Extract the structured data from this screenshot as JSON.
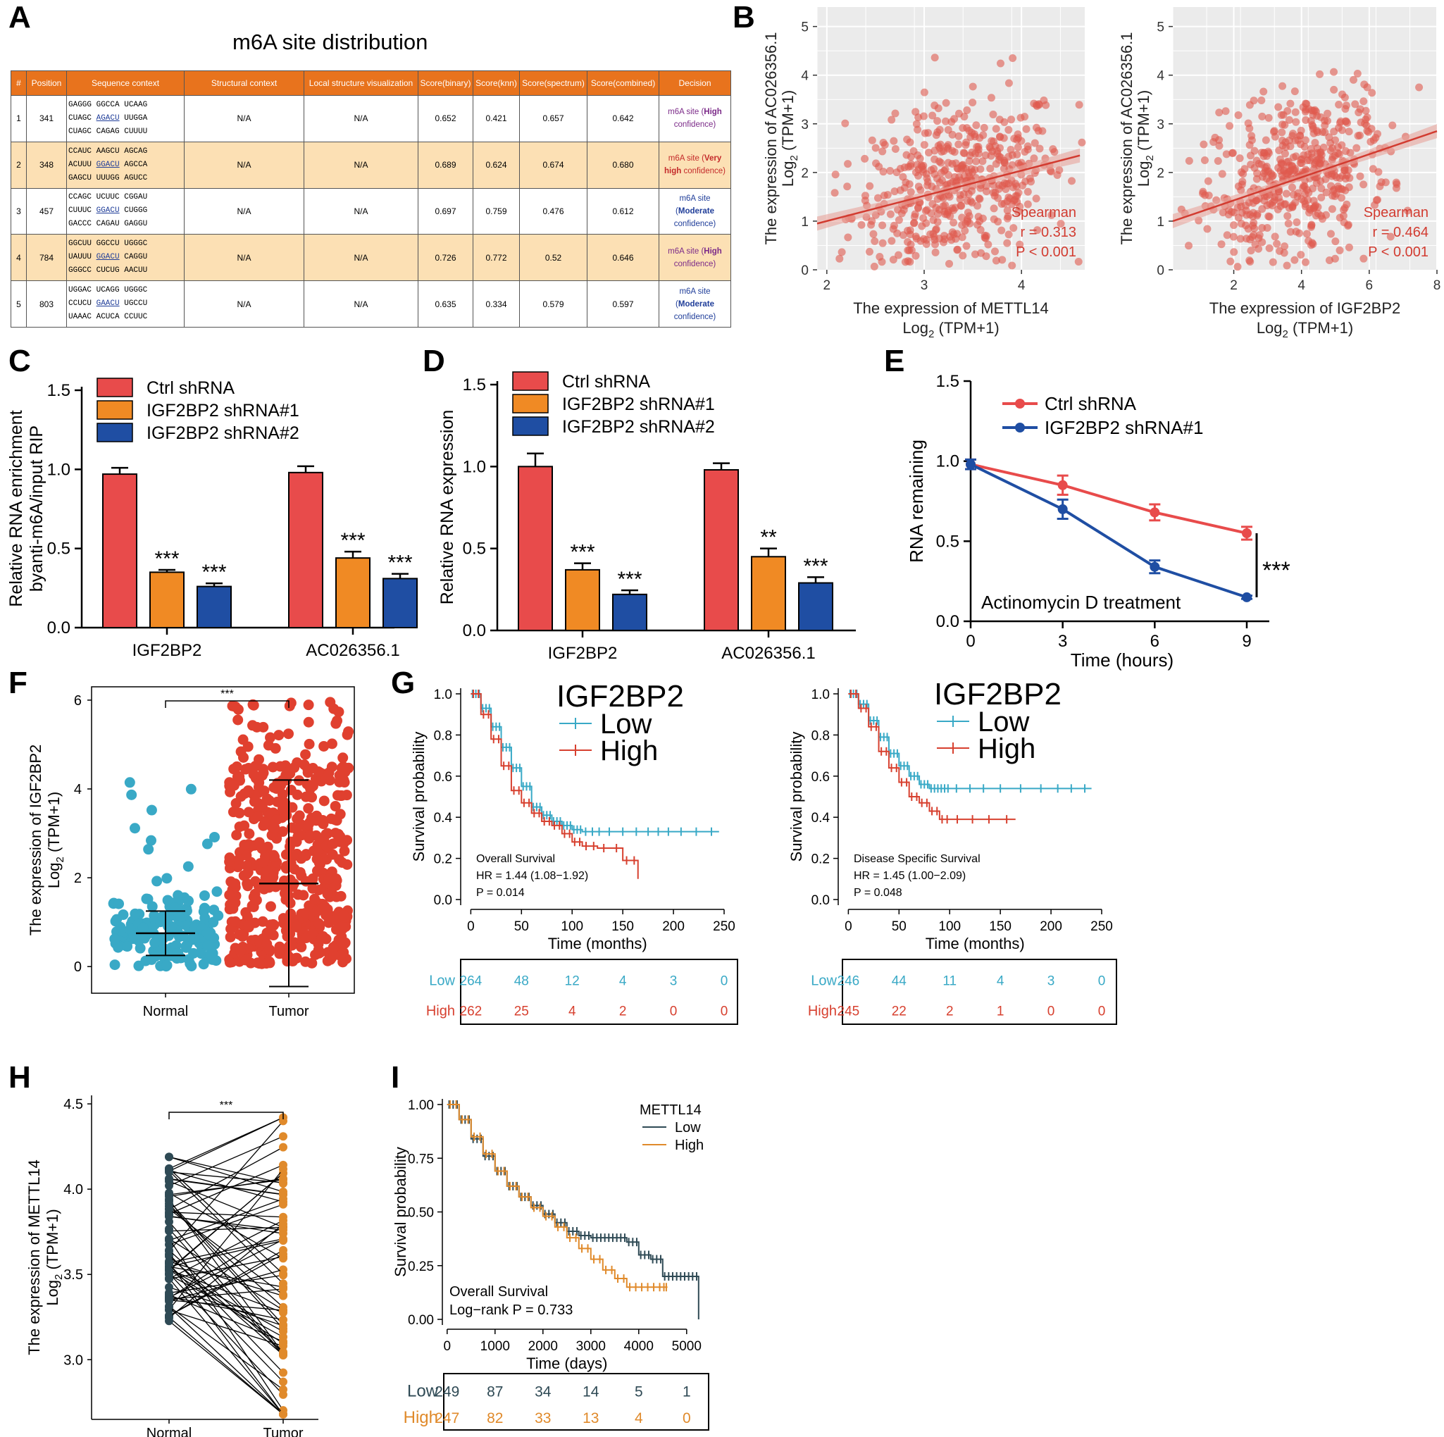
{
  "panels": {
    "A": "A",
    "B": "B",
    "C": "C",
    "D": "D",
    "E": "E",
    "F": "F",
    "G": "G",
    "H": "H",
    "I": "I"
  },
  "panelA": {
    "title": "m6A site distribution",
    "headers": [
      "#",
      "Position",
      "Sequence context",
      "Structural context",
      "Local structure visualization",
      "Score(binary)",
      "Score(knn)",
      "Score(spectrum)",
      "Score(combined)",
      "Decision"
    ],
    "rows": [
      {
        "n": "1",
        "pos": "341",
        "seq": [
          "GAGGG GGCCA UCAAG",
          "CUAGC AGACU UUGGA",
          "CUAGC CAGAG CUUUU"
        ],
        "sc": "N/A",
        "lsv": "N/A",
        "binary": "0.652",
        "knn": "0.421",
        "spectrum": "0.657",
        "combined": "0.642",
        "decision_a": "m6A site (",
        "decision_b": "High",
        "decision_c": " confidence)",
        "dclass": "dec-high"
      },
      {
        "n": "2",
        "pos": "348",
        "seq": [
          "CCAUC AAGCU AGCAG",
          "ACUUU GGACU AGCCA",
          "GAGCU UUUGG AGUCC"
        ],
        "sc": "N/A",
        "lsv": "N/A",
        "binary": "0.689",
        "knn": "0.624",
        "spectrum": "0.674",
        "combined": "0.680",
        "decision_a": "m6A site (",
        "decision_b": "Very high",
        "decision_c": " confidence)",
        "dclass": "dec-very"
      },
      {
        "n": "3",
        "pos": "457",
        "seq": [
          "CCAGC UCUUC CGGAU",
          "CUUUC GGACU CUGGG",
          "GACCC CAGAU GAGGU"
        ],
        "sc": "N/A",
        "lsv": "N/A",
        "binary": "0.697",
        "knn": "0.759",
        "spectrum": "0.476",
        "combined": "0.612",
        "decision_a": "m6A site (",
        "decision_b": "Moderate",
        "decision_c": " confidence)",
        "dclass": "dec-mod"
      },
      {
        "n": "4",
        "pos": "784",
        "seq": [
          "GGCUU GGCCU UGGGC",
          "UAUUU GGACU CAGGU",
          "GGGCC CUCUG AACUU"
        ],
        "sc": "N/A",
        "lsv": "N/A",
        "binary": "0.726",
        "knn": "0.772",
        "spectrum": "0.52",
        "combined": "0.646",
        "decision_a": "m6A site (",
        "decision_b": "High",
        "decision_c": " confidence)",
        "dclass": "dec-high"
      },
      {
        "n": "5",
        "pos": "803",
        "seq": [
          "UGGAC UCAGG UGGGC",
          "CCUCU GAACU UGCCU",
          "UAAAC ACUCA CCUUC"
        ],
        "sc": "N/A",
        "lsv": "N/A",
        "binary": "0.635",
        "knn": "0.334",
        "spectrum": "0.579",
        "combined": "0.597",
        "decision_a": "m6A site (",
        "decision_b": "Moderate",
        "decision_c": " confidence)",
        "dclass": "dec-mod"
      }
    ]
  },
  "colors": {
    "red": "#e84b4b",
    "orange": "#f08a24",
    "blue": "#1f4ea3",
    "scatter": "#e05a4f",
    "teal": "#39a9c6",
    "tumor_red": "#e0402f",
    "km_red": "#d7402f",
    "dark_slate": "#2f4a55",
    "gold": "#e08a2b"
  },
  "chart_data": [
    {
      "id": "B1",
      "type": "scatter",
      "xlabel": "The expression of METTL14",
      "xlabel2": "Log2 (TPM+1)",
      "ylabel": "The expression of AC026356.1",
      "ylabel2": "Log2 (TPM+1)",
      "xlim": [
        1.9,
        4.65
      ],
      "ylim": [
        0,
        5.4
      ],
      "xticks": [
        2,
        3,
        4
      ],
      "yticks": [
        0,
        1,
        2,
        3,
        4,
        5
      ],
      "fit": {
        "x": [
          1.9,
          4.6
        ],
        "y": [
          0.95,
          2.35
        ]
      },
      "annotation": [
        "Spearman",
        "r = 0.313",
        "P < 0.001"
      ]
    },
    {
      "id": "B2",
      "type": "scatter",
      "xlabel": "The expression of IGF2BP2",
      "xlabel2": "Log2 (TPM+1)",
      "ylabel": "The expression of AC026356.1",
      "ylabel2": "Log2 (TPM+1)",
      "xlim": [
        0.2,
        8.0
      ],
      "ylim": [
        0,
        5.4
      ],
      "xticks": [
        2,
        4,
        6,
        8
      ],
      "yticks": [
        0,
        1,
        2,
        3,
        4,
        5
      ],
      "fit": {
        "x": [
          0.2,
          8.0
        ],
        "y": [
          1.0,
          2.85
        ]
      },
      "annotation": [
        "Spearman",
        "r = 0.464",
        "P < 0.001"
      ]
    },
    {
      "id": "C",
      "type": "bar",
      "ylabel": "Relative RNA enrichment",
      "ylabel2": "byanti-m6A/input RIP",
      "categories": [
        "IGF2BP2",
        "AC026356.1"
      ],
      "ylim": [
        0,
        1.5
      ],
      "yticks": [
        "0.0",
        "0.5",
        "1.0",
        "1.5"
      ],
      "series": [
        {
          "name": "Ctrl shRNA",
          "values": [
            0.97,
            0.98
          ],
          "err": [
            0.04,
            0.04
          ],
          "sig": [
            "",
            ""
          ]
        },
        {
          "name": "IGF2BP2 shRNA#1",
          "values": [
            0.35,
            0.44
          ],
          "err": [
            0.015,
            0.04
          ],
          "sig": [
            "***",
            "***"
          ]
        },
        {
          "name": "IGF2BP2 shRNA#2",
          "values": [
            0.26,
            0.31
          ],
          "err": [
            0.02,
            0.03
          ],
          "sig": [
            "***",
            "***"
          ]
        }
      ]
    },
    {
      "id": "D",
      "type": "bar",
      "ylabel": "Relative RNA expression",
      "categories": [
        "IGF2BP2",
        "AC026356.1"
      ],
      "ylim": [
        0,
        1.5
      ],
      "yticks": [
        "0.0",
        "0.5",
        "1.0",
        "1.5"
      ],
      "series": [
        {
          "name": "Ctrl shRNA",
          "values": [
            1.0,
            0.98
          ],
          "err": [
            0.08,
            0.04
          ],
          "sig": [
            "",
            ""
          ]
        },
        {
          "name": "IGF2BP2 shRNA#1",
          "values": [
            0.37,
            0.45
          ],
          "err": [
            0.04,
            0.05
          ],
          "sig": [
            "***",
            "**"
          ]
        },
        {
          "name": "IGF2BP2 shRNA#2",
          "values": [
            0.22,
            0.29
          ],
          "err": [
            0.025,
            0.035
          ],
          "sig": [
            "***",
            "***"
          ]
        }
      ]
    },
    {
      "id": "E",
      "type": "line",
      "xlabel": "Time (hours)",
      "ylabel": "RNA remaining",
      "x": [
        0,
        3,
        6,
        9
      ],
      "xlim": [
        0,
        9.5
      ],
      "ylim": [
        0,
        1.5
      ],
      "xticks": [
        "0",
        "3",
        "6",
        "9"
      ],
      "yticks": [
        "0.0",
        "0.5",
        "1.0",
        "1.5"
      ],
      "series": [
        {
          "name": "Ctrl shRNA",
          "values": [
            0.98,
            0.85,
            0.68,
            0.55
          ],
          "err": [
            0.03,
            0.06,
            0.05,
            0.04
          ]
        },
        {
          "name": "IGF2BP2 shRNA#1",
          "values": [
            0.98,
            0.7,
            0.34,
            0.15
          ],
          "err": [
            0.03,
            0.06,
            0.04,
            0.01
          ]
        }
      ],
      "annotation": "Actinomycin D treatment",
      "sig": "***"
    },
    {
      "id": "F",
      "type": "scatter",
      "ylabel": "The expression of IGF2BP2",
      "ylabel2": "Log2 (TPM+1)",
      "categories": [
        "Normal",
        "Tumor"
      ],
      "ylim": [
        -0.6,
        6.3
      ],
      "yticks": [
        0,
        2,
        4,
        6
      ],
      "summary": [
        {
          "mean": 0.75,
          "sd_low": 0.25,
          "sd_high": 1.25
        },
        {
          "mean": 1.87,
          "sd_low": -0.45,
          "sd_high": 4.2
        }
      ],
      "sig": "***"
    },
    {
      "id": "G1",
      "type": "line",
      "legend_title": "IGF2BP2",
      "xlabel": "Time (months)",
      "ylabel": "Survival probability",
      "xlim": [
        -10,
        250
      ],
      "ylim": [
        0,
        1.0
      ],
      "xticks": [
        0,
        50,
        100,
        150,
        200,
        250
      ],
      "yticks": [
        "0.0",
        "0.2",
        "0.4",
        "0.6",
        "0.8",
        "1.0"
      ],
      "series": [
        {
          "name": "Low",
          "x": [
            0,
            10,
            20,
            30,
            40,
            50,
            60,
            70,
            80,
            90,
            100,
            110,
            130,
            170,
            200,
            245
          ],
          "y": [
            1.0,
            0.93,
            0.84,
            0.74,
            0.64,
            0.55,
            0.45,
            0.41,
            0.38,
            0.36,
            0.34,
            0.33,
            0.33,
            0.33,
            0.33,
            0.33
          ]
        },
        {
          "name": "High",
          "x": [
            0,
            10,
            20,
            30,
            40,
            50,
            60,
            70,
            80,
            90,
            100,
            110,
            125,
            150,
            165
          ],
          "y": [
            1.0,
            0.9,
            0.78,
            0.65,
            0.53,
            0.47,
            0.42,
            0.38,
            0.36,
            0.32,
            0.28,
            0.26,
            0.25,
            0.19,
            0.1
          ]
        }
      ],
      "annotation": [
        "Overall Survival",
        "HR = 1.44 (1.08−1.92)",
        "P = 0.014"
      ],
      "risk_table": {
        "Low": [
          "264",
          "48",
          "12",
          "4",
          "3",
          "0"
        ],
        "High": [
          "262",
          "25",
          "4",
          "2",
          "0",
          "0"
        ]
      }
    },
    {
      "id": "G2",
      "type": "line",
      "legend_title": "IGF2BP2",
      "xlabel": "Time (months)",
      "ylabel": "Survival probability",
      "xlim": [
        -10,
        250
      ],
      "ylim": [
        0,
        1.0
      ],
      "xticks": [
        0,
        50,
        100,
        150,
        200,
        250
      ],
      "yticks": [
        "0.0",
        "0.2",
        "0.4",
        "0.6",
        "0.8",
        "1.0"
      ],
      "series": [
        {
          "name": "Low",
          "x": [
            0,
            10,
            20,
            30,
            40,
            50,
            60,
            70,
            80,
            90,
            100,
            140,
            200,
            240
          ],
          "y": [
            1.0,
            0.95,
            0.87,
            0.79,
            0.71,
            0.65,
            0.6,
            0.56,
            0.54,
            0.54,
            0.54,
            0.54,
            0.54,
            0.54
          ]
        },
        {
          "name": "High",
          "x": [
            0,
            10,
            20,
            30,
            40,
            50,
            60,
            70,
            80,
            90,
            100,
            130,
            165
          ],
          "y": [
            1.0,
            0.93,
            0.84,
            0.72,
            0.64,
            0.57,
            0.5,
            0.47,
            0.43,
            0.39,
            0.39,
            0.39,
            0.39
          ]
        }
      ],
      "annotation": [
        "Disease Specific Survival",
        "HR = 1.45 (1.00−2.09)",
        "P = 0.048"
      ],
      "risk_table": {
        "Low": [
          "246",
          "44",
          "11",
          "4",
          "3",
          "0"
        ],
        "High": [
          "245",
          "22",
          "2",
          "1",
          "0",
          "0"
        ]
      }
    },
    {
      "id": "H",
      "type": "line",
      "ylabel": "The expression of METTL14",
      "ylabel2": "Log2 (TPM+1)",
      "categories": [
        "Normal",
        "Tumor"
      ],
      "ylim": [
        2.65,
        4.55
      ],
      "yticks": [
        "3.0",
        "3.5",
        "4.0",
        "4.5"
      ],
      "sig": "***"
    },
    {
      "id": "I",
      "type": "line",
      "legend_title": "METTL14",
      "xlabel": "Time (days)",
      "ylabel": "Survival probability",
      "xlim": [
        -100,
        5400
      ],
      "ylim": [
        0,
        1.0
      ],
      "xticks": [
        0,
        1000,
        2000,
        3000,
        4000,
        5000
      ],
      "yticks": [
        "0.00",
        "0.25",
        "0.50",
        "0.75",
        "1.00"
      ],
      "series": [
        {
          "name": "Low",
          "x": [
            0,
            250,
            500,
            750,
            1000,
            1250,
            1500,
            1750,
            2000,
            2250,
            2500,
            2750,
            3000,
            3250,
            3500,
            3750,
            4000,
            4250,
            4500,
            4750,
            5000,
            5250
          ],
          "y": [
            1.0,
            0.93,
            0.84,
            0.76,
            0.69,
            0.62,
            0.57,
            0.53,
            0.49,
            0.45,
            0.41,
            0.39,
            0.38,
            0.38,
            0.38,
            0.36,
            0.3,
            0.28,
            0.2,
            0.2,
            0.2,
            0.0
          ]
        },
        {
          "name": "High",
          "x": [
            0,
            250,
            500,
            750,
            1000,
            1250,
            1500,
            1750,
            2000,
            2250,
            2500,
            2750,
            3000,
            3250,
            3500,
            3750,
            4000,
            4250,
            4500,
            4600
          ],
          "y": [
            1.0,
            0.93,
            0.85,
            0.77,
            0.69,
            0.62,
            0.57,
            0.52,
            0.48,
            0.43,
            0.38,
            0.33,
            0.28,
            0.23,
            0.19,
            0.15,
            0.15,
            0.15,
            0.15,
            0.15
          ]
        }
      ],
      "annotation": [
        "Overall Survival",
        "Log−rank P = 0.733"
      ],
      "risk_table": {
        "Low": [
          "249",
          "87",
          "34",
          "14",
          "5",
          "1"
        ],
        "High": [
          "247",
          "82",
          "33",
          "13",
          "4",
          "0"
        ]
      }
    }
  ]
}
